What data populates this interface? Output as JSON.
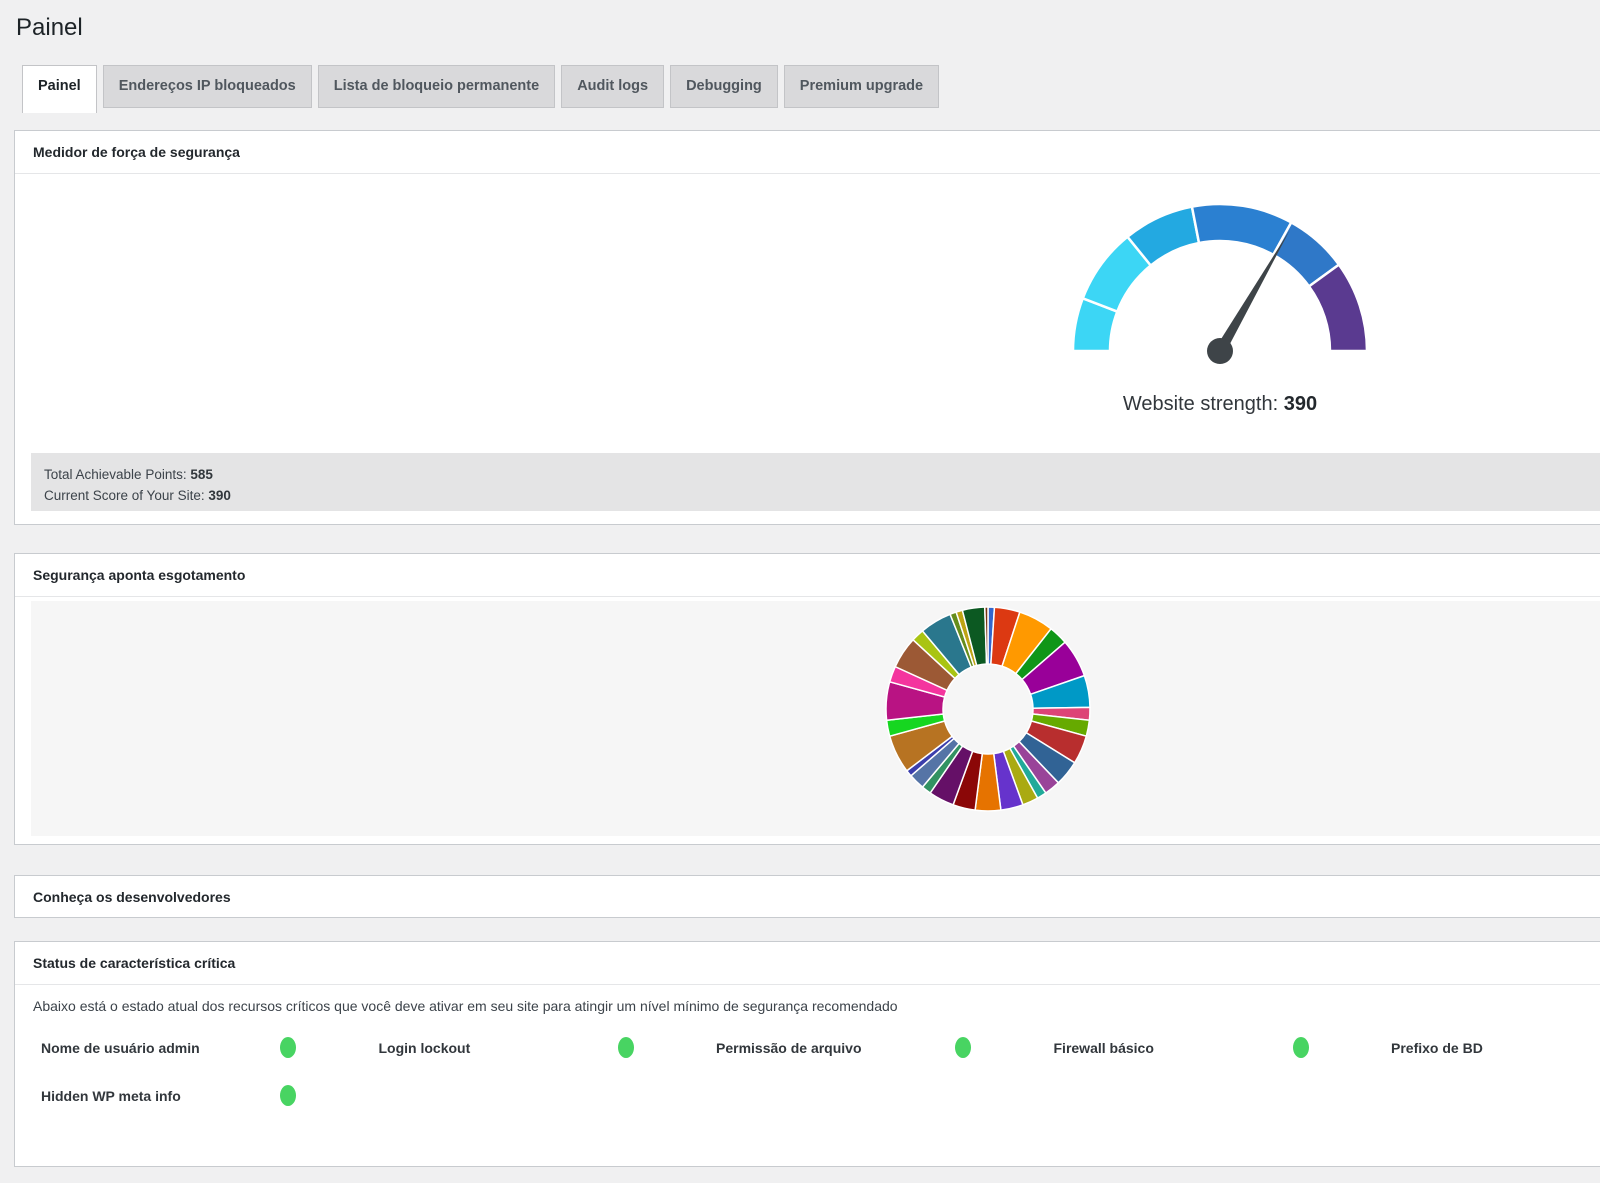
{
  "page": {
    "title": "Painel"
  },
  "tabs": [
    {
      "label": "Painel",
      "active": true
    },
    {
      "label": "Endereços IP bloqueados",
      "active": false
    },
    {
      "label": "Lista de bloqueio permanente",
      "active": false
    },
    {
      "label": "Audit logs",
      "active": false
    },
    {
      "label": "Debugging",
      "active": false
    },
    {
      "label": "Premium upgrade",
      "active": false
    }
  ],
  "panels": {
    "meter": {
      "title": "Medidor de força de segurança",
      "strength_label": "Website strength:",
      "strength_value": "390",
      "total_points_label": "Total Achievable Points:",
      "total_points_value": "585",
      "current_score_label": "Current Score of Your Site:",
      "current_score_value": "390"
    },
    "breakdown": {
      "title": "Segurança aponta esgotamento"
    },
    "developers": {
      "title": "Conheça os desenvolvedores"
    },
    "critical": {
      "title": "Status de característica crítica",
      "description": "Abaixo está o estado atual dos recursos críticos que você deve ativar em seu site para atingir um nível mínimo de segurança recomendado",
      "status_on_color": "#48D462",
      "features": [
        {
          "label": "Nome de usuário admin",
          "on": true
        },
        {
          "label": "Login lockout",
          "on": true
        },
        {
          "label": "Permissão de arquivo",
          "on": true
        },
        {
          "label": "Firewall básico",
          "on": true
        },
        {
          "label": "Prefixo de BD",
          "on": true
        },
        {
          "label": "Hidden WP meta info",
          "on": true
        }
      ]
    }
  },
  "chart_data": [
    {
      "type": "gauge",
      "title": "Website strength",
      "value": 390,
      "max": 585,
      "needle_color": "#3E4448",
      "segments": [
        {
          "from_deg": 0,
          "to_deg": 21,
          "color": "#3CD6F5"
        },
        {
          "from_deg": 21,
          "to_deg": 51,
          "color": "#3CD6F5"
        },
        {
          "from_deg": 51,
          "to_deg": 79,
          "color": "#23A9E1"
        },
        {
          "from_deg": 79,
          "to_deg": 119,
          "color": "#2B80D1"
        },
        {
          "from_deg": 119,
          "to_deg": 144,
          "color": "#2F78C8"
        },
        {
          "from_deg": 144,
          "to_deg": 180,
          "color": "#5A3A90"
        }
      ]
    },
    {
      "type": "pie",
      "donut": true,
      "title": "Segurança aponta esgotamento",
      "legend": "none",
      "slices": [
        {
          "color": "#3366CC",
          "value": 1.0
        },
        {
          "color": "#DC3912",
          "value": 4.0
        },
        {
          "color": "#FF9900",
          "value": 5.5
        },
        {
          "color": "#109618",
          "value": 3.0
        },
        {
          "color": "#990099",
          "value": 6.0
        },
        {
          "color": "#0099C6",
          "value": 5.0
        },
        {
          "color": "#DD4477",
          "value": 2.0
        },
        {
          "color": "#66AA00",
          "value": 2.5
        },
        {
          "color": "#B82E2E",
          "value": 4.5
        },
        {
          "color": "#316395",
          "value": 4.0
        },
        {
          "color": "#994499",
          "value": 2.5
        },
        {
          "color": "#22AA99",
          "value": 1.5
        },
        {
          "color": "#AAAA11",
          "value": 2.5
        },
        {
          "color": "#6633CC",
          "value": 3.5
        },
        {
          "color": "#E67300",
          "value": 4.0
        },
        {
          "color": "#8B0707",
          "value": 3.5
        },
        {
          "color": "#651067",
          "value": 4.0
        },
        {
          "color": "#329262",
          "value": 1.5
        },
        {
          "color": "#5574A6",
          "value": 2.5
        },
        {
          "color": "#3B3EAC",
          "value": 1.0
        },
        {
          "color": "#B77322",
          "value": 6.0
        },
        {
          "color": "#16D620",
          "value": 2.5
        },
        {
          "color": "#B91383",
          "value": 6.0
        },
        {
          "color": "#F4359E",
          "value": 2.5
        },
        {
          "color": "#9C5935",
          "value": 5.0
        },
        {
          "color": "#A9C413",
          "value": 2.0
        },
        {
          "color": "#2A778D",
          "value": 5.0
        },
        {
          "color": "#668D1C",
          "value": 1.0
        },
        {
          "color": "#BEA413",
          "value": 1.0
        },
        {
          "color": "#0C5922",
          "value": 3.5
        },
        {
          "color": "#743411",
          "value": 0.5
        }
      ]
    }
  ]
}
